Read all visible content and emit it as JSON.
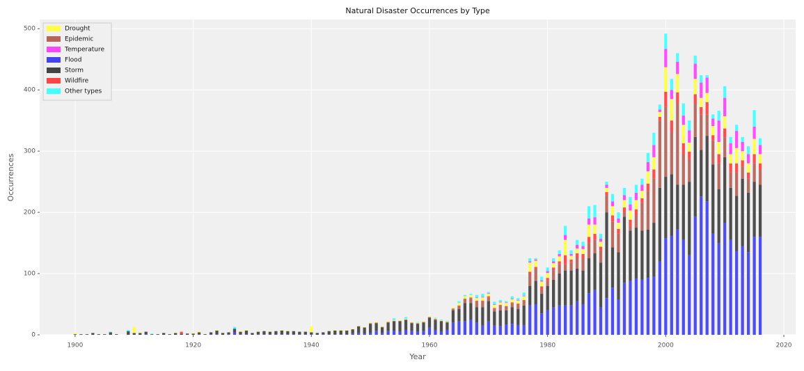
{
  "chart_data": {
    "type": "bar",
    "stacked": true,
    "title": "Natural Disaster Occurrences by Type",
    "x_label": "Year",
    "y_label": "Occurrences",
    "legend": "upper left",
    "grid": true,
    "xlim": [
      1894,
      2022
    ],
    "ylim": [
      0,
      515
    ],
    "xticks": [
      1900,
      1920,
      1940,
      1960,
      1980,
      2000,
      2020
    ],
    "yticks": [
      0,
      100,
      200,
      300,
      400,
      500
    ],
    "x": [
      1900,
      1901,
      1902,
      1903,
      1904,
      1905,
      1906,
      1907,
      1908,
      1909,
      1910,
      1911,
      1912,
      1913,
      1914,
      1915,
      1916,
      1917,
      1918,
      1919,
      1920,
      1921,
      1922,
      1923,
      1924,
      1925,
      1926,
      1927,
      1928,
      1929,
      1930,
      1931,
      1932,
      1933,
      1934,
      1935,
      1936,
      1937,
      1938,
      1939,
      1940,
      1941,
      1942,
      1943,
      1944,
      1945,
      1946,
      1947,
      1948,
      1949,
      1950,
      1951,
      1952,
      1953,
      1954,
      1955,
      1956,
      1957,
      1958,
      1959,
      1960,
      1961,
      1962,
      1963,
      1964,
      1965,
      1966,
      1967,
      1968,
      1969,
      1970,
      1971,
      1972,
      1973,
      1974,
      1975,
      1976,
      1977,
      1978,
      1979,
      1980,
      1981,
      1982,
      1983,
      1984,
      1985,
      1986,
      1987,
      1988,
      1989,
      1990,
      1991,
      1992,
      1993,
      1994,
      1995,
      1996,
      1997,
      1998,
      1999,
      2000,
      2001,
      2002,
      2003,
      2004,
      2005,
      2006,
      2007,
      2008,
      2009,
      2010,
      2011,
      2012,
      2013,
      2014,
      2015,
      2016
    ],
    "series": [
      {
        "name": "Drought",
        "color": "#ffff44",
        "values": [
          2,
          0,
          0,
          0,
          0,
          0,
          0,
          0,
          0,
          0,
          10,
          1,
          0,
          0,
          0,
          0,
          0,
          1,
          0,
          0,
          1,
          2,
          0,
          0,
          1,
          0,
          0,
          0,
          1,
          1,
          0,
          1,
          0,
          1,
          0,
          1,
          1,
          0,
          0,
          0,
          10,
          0,
          0,
          0,
          1,
          1,
          1,
          1,
          1,
          1,
          1,
          1,
          1,
          1,
          1,
          1,
          1,
          1,
          1,
          1,
          1,
          1,
          1,
          1,
          2,
          4,
          4,
          4,
          4,
          5,
          4,
          5,
          4,
          5,
          5,
          5,
          6,
          15,
          10,
          8,
          8,
          7,
          8,
          25,
          6,
          8,
          8,
          20,
          15,
          8,
          7,
          15,
          10,
          12,
          15,
          15,
          12,
          20,
          20,
          8,
          40,
          35,
          30,
          30,
          15,
          25,
          15,
          15,
          15,
          20,
          20,
          15,
          25,
          15,
          15,
          25,
          15
        ]
      },
      {
        "name": "Epidemic",
        "color": "#b5655a",
        "values": [
          0,
          0,
          0,
          0,
          0,
          0,
          0,
          0,
          0,
          0,
          0,
          0,
          0,
          0,
          0,
          0,
          0,
          0,
          0,
          0,
          0,
          0,
          0,
          0,
          0,
          0,
          0,
          0,
          0,
          0,
          0,
          0,
          0,
          0,
          0,
          0,
          0,
          0,
          0,
          0,
          0,
          0,
          0,
          0,
          0,
          0,
          0,
          0,
          0,
          0,
          1,
          1,
          1,
          1,
          1,
          1,
          1,
          1,
          1,
          1,
          1,
          2,
          1,
          1,
          3,
          5,
          6,
          8,
          10,
          10,
          6,
          5,
          8,
          6,
          6,
          8,
          8,
          20,
          20,
          8,
          8,
          15,
          15,
          10,
          13,
          17,
          20,
          25,
          22,
          20,
          28,
          42,
          30,
          7,
          8,
          20,
          45,
          63,
          72,
          110,
          114,
          70,
          133,
          50,
          37,
          55,
          58,
          35,
          40,
          42,
          32,
          25,
          38,
          20,
          23,
          30,
          25
        ]
      },
      {
        "name": "Temperature",
        "color": "#ff44ff",
        "values": [
          0,
          0,
          0,
          0,
          0,
          0,
          0,
          0,
          0,
          0,
          0,
          0,
          0,
          0,
          0,
          0,
          0,
          0,
          0,
          0,
          0,
          0,
          0,
          0,
          0,
          0,
          0,
          0,
          0,
          0,
          0,
          0,
          0,
          0,
          0,
          0,
          0,
          0,
          0,
          0,
          0,
          0,
          0,
          0,
          0,
          0,
          0,
          0,
          0,
          0,
          0,
          0,
          0,
          0,
          0,
          0,
          0,
          0,
          0,
          0,
          0,
          0,
          0,
          0,
          0,
          0,
          0,
          0,
          1,
          1,
          1,
          1,
          1,
          1,
          1,
          1,
          1,
          2,
          2,
          2,
          3,
          3,
          4,
          8,
          3,
          6,
          5,
          10,
          12,
          5,
          5,
          8,
          7,
          8,
          10,
          12,
          10,
          15,
          20,
          4,
          30,
          15,
          20,
          15,
          20,
          25,
          25,
          25,
          12,
          35,
          30,
          18,
          28,
          15,
          15,
          20,
          15
        ]
      },
      {
        "name": "Flood",
        "color": "#4444ee",
        "values": [
          0,
          0,
          0,
          0,
          0,
          0,
          0,
          0,
          0,
          0,
          0,
          0,
          1,
          0,
          0,
          0,
          0,
          0,
          0,
          0,
          0,
          1,
          0,
          1,
          1,
          0,
          1,
          4,
          1,
          1,
          0,
          1,
          1,
          1,
          1,
          1,
          1,
          1,
          1,
          1,
          1,
          0,
          1,
          1,
          1,
          1,
          1,
          2,
          3,
          2,
          3,
          6,
          3,
          6,
          6,
          5,
          8,
          6,
          5,
          6,
          12,
          8,
          5,
          8,
          20,
          22,
          22,
          25,
          20,
          15,
          22,
          15,
          14,
          17,
          18,
          16,
          16,
          48,
          50,
          35,
          40,
          45,
          48,
          48,
          48,
          55,
          50,
          68,
          73,
          45,
          60,
          77,
          58,
          85,
          88,
          92,
          90,
          93,
          95,
          120,
          158,
          162,
          172,
          155,
          130,
          193,
          226,
          218,
          165,
          150,
          183,
          155,
          137,
          145,
          135,
          160,
          160
        ]
      },
      {
        "name": "Storm",
        "color": "#444444",
        "values": [
          1,
          1,
          1,
          3,
          1,
          1,
          4,
          1,
          0,
          6,
          3,
          3,
          4,
          1,
          1,
          3,
          1,
          3,
          2,
          2,
          2,
          3,
          1,
          3,
          6,
          3,
          3,
          6,
          4,
          6,
          3,
          4,
          5,
          4,
          5,
          6,
          5,
          5,
          4,
          4,
          3,
          3,
          3,
          5,
          6,
          6,
          6,
          7,
          11,
          10,
          15,
          13,
          9,
          14,
          16,
          17,
          16,
          13,
          13,
          14,
          16,
          16,
          17,
          12,
          20,
          20,
          30,
          27,
          25,
          30,
          33,
          23,
          26,
          23,
          27,
          26,
          32,
          32,
          38,
          32,
          40,
          45,
          52,
          57,
          57,
          53,
          55,
          57,
          60,
          73,
          140,
          66,
          77,
          108,
          82,
          83,
          80,
          79,
          88,
          120,
          100,
          100,
          73,
          90,
          120,
          130,
          76,
          107,
          113,
          88,
          107,
          85,
          90,
          110,
          97,
          90,
          85
        ]
      },
      {
        "name": "Wildfire",
        "color": "#ff4444",
        "values": [
          0,
          0,
          0,
          0,
          0,
          0,
          0,
          0,
          0,
          0,
          0,
          0,
          0,
          0,
          0,
          0,
          0,
          0,
          3,
          0,
          0,
          0,
          0,
          0,
          0,
          0,
          0,
          0,
          0,
          0,
          0,
          0,
          0,
          0,
          0,
          0,
          0,
          0,
          0,
          0,
          0,
          0,
          0,
          0,
          0,
          0,
          0,
          0,
          0,
          0,
          0,
          0,
          0,
          0,
          0,
          0,
          0,
          0,
          0,
          0,
          0,
          0,
          0,
          0,
          0,
          1,
          1,
          1,
          1,
          1,
          2,
          1,
          1,
          1,
          2,
          1,
          1,
          3,
          3,
          4,
          5,
          5,
          5,
          15,
          5,
          8,
          7,
          10,
          10,
          6,
          5,
          10,
          8,
          8,
          10,
          10,
          8,
          12,
          15,
          6,
          25,
          18,
          18,
          18,
          12,
          15,
          12,
          20,
          8,
          15,
          15,
          15,
          15,
          10,
          10,
          15,
          10
        ]
      },
      {
        "name": "Other types",
        "color": "#44ffff",
        "values": [
          0,
          0,
          0,
          0,
          0,
          0,
          1,
          0,
          0,
          2,
          0,
          0,
          0,
          1,
          0,
          0,
          0,
          0,
          0,
          0,
          0,
          0,
          0,
          0,
          0,
          0,
          0,
          3,
          0,
          0,
          0,
          0,
          0,
          0,
          0,
          0,
          0,
          0,
          0,
          0,
          0,
          0,
          0,
          0,
          0,
          0,
          0,
          0,
          0,
          0,
          0,
          0,
          0,
          0,
          3,
          0,
          3,
          0,
          1,
          0,
          0,
          1,
          1,
          1,
          0,
          3,
          2,
          2,
          4,
          5,
          2,
          4,
          3,
          2,
          4,
          3,
          5,
          5,
          2,
          6,
          6,
          5,
          6,
          15,
          6,
          8,
          7,
          20,
          20,
          8,
          5,
          12,
          10,
          12,
          12,
          13,
          10,
          15,
          20,
          8,
          25,
          18,
          14,
          20,
          16,
          13,
          12,
          4,
          7,
          16,
          19,
          10,
          10,
          8,
          13,
          27,
          11
        ]
      }
    ]
  }
}
